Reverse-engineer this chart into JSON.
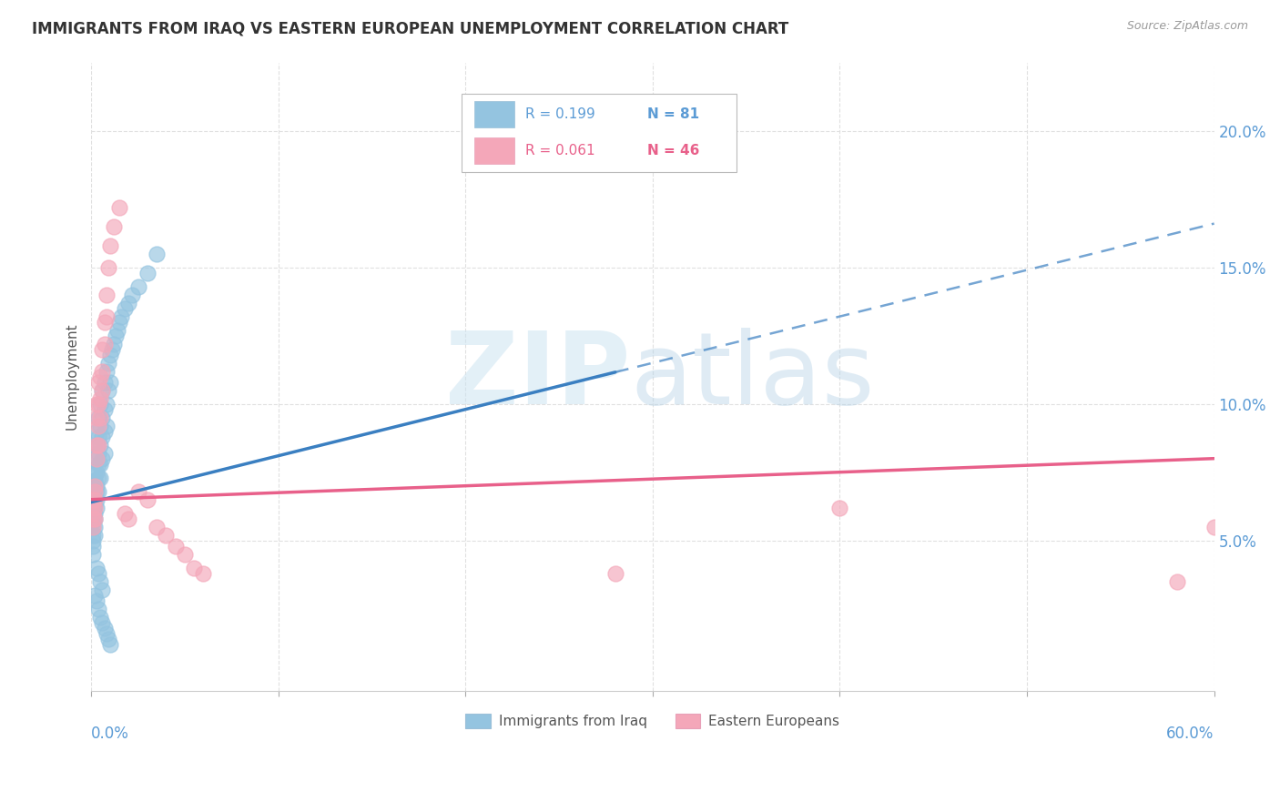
{
  "title": "IMMIGRANTS FROM IRAQ VS EASTERN EUROPEAN UNEMPLOYMENT CORRELATION CHART",
  "source": "Source: ZipAtlas.com",
  "ylabel": "Unemployment",
  "y_ticks": [
    0.05,
    0.1,
    0.15,
    0.2
  ],
  "y_tick_labels": [
    "5.0%",
    "10.0%",
    "15.0%",
    "20.0%"
  ],
  "x_range": [
    0.0,
    0.6
  ],
  "y_range": [
    -0.005,
    0.225
  ],
  "blue_color": "#94c4e0",
  "pink_color": "#f4a7b9",
  "trendline_blue": "#3a7fc1",
  "trendline_pink": "#e8608a",
  "background_color": "#ffffff",
  "iraq_x": [
    0.001,
    0.001,
    0.001,
    0.001,
    0.001,
    0.001,
    0.001,
    0.001,
    0.001,
    0.001,
    0.002,
    0.002,
    0.002,
    0.002,
    0.002,
    0.002,
    0.002,
    0.002,
    0.002,
    0.002,
    0.003,
    0.003,
    0.003,
    0.003,
    0.003,
    0.003,
    0.003,
    0.003,
    0.004,
    0.004,
    0.004,
    0.004,
    0.004,
    0.004,
    0.005,
    0.005,
    0.005,
    0.005,
    0.005,
    0.006,
    0.006,
    0.006,
    0.006,
    0.007,
    0.007,
    0.007,
    0.007,
    0.008,
    0.008,
    0.008,
    0.009,
    0.009,
    0.01,
    0.01,
    0.011,
    0.012,
    0.013,
    0.014,
    0.015,
    0.016,
    0.018,
    0.02,
    0.022,
    0.025,
    0.03,
    0.035,
    0.002,
    0.003,
    0.004,
    0.005,
    0.006,
    0.007,
    0.008,
    0.009,
    0.01,
    0.003,
    0.004,
    0.005,
    0.006
  ],
  "iraq_y": [
    0.065,
    0.063,
    0.06,
    0.058,
    0.057,
    0.055,
    0.052,
    0.05,
    0.048,
    0.045,
    0.075,
    0.072,
    0.07,
    0.068,
    0.065,
    0.063,
    0.06,
    0.058,
    0.055,
    0.052,
    0.09,
    0.085,
    0.08,
    0.075,
    0.07,
    0.068,
    0.065,
    0.062,
    0.095,
    0.088,
    0.082,
    0.078,
    0.073,
    0.068,
    0.1,
    0.092,
    0.085,
    0.078,
    0.073,
    0.105,
    0.095,
    0.088,
    0.08,
    0.108,
    0.098,
    0.09,
    0.082,
    0.112,
    0.1,
    0.092,
    0.115,
    0.105,
    0.118,
    0.108,
    0.12,
    0.122,
    0.125,
    0.127,
    0.13,
    0.132,
    0.135,
    0.137,
    0.14,
    0.143,
    0.148,
    0.155,
    0.03,
    0.028,
    0.025,
    0.022,
    0.02,
    0.018,
    0.016,
    0.014,
    0.012,
    0.04,
    0.038,
    0.035,
    0.032
  ],
  "eu_x": [
    0.001,
    0.001,
    0.001,
    0.001,
    0.001,
    0.002,
    0.002,
    0.002,
    0.002,
    0.002,
    0.003,
    0.003,
    0.003,
    0.003,
    0.004,
    0.004,
    0.004,
    0.004,
    0.005,
    0.005,
    0.005,
    0.006,
    0.006,
    0.006,
    0.007,
    0.007,
    0.008,
    0.008,
    0.009,
    0.01,
    0.012,
    0.015,
    0.018,
    0.02,
    0.025,
    0.03,
    0.035,
    0.04,
    0.045,
    0.05,
    0.055,
    0.06,
    0.28,
    0.4,
    0.58,
    0.6
  ],
  "eu_y": [
    0.065,
    0.063,
    0.06,
    0.058,
    0.055,
    0.07,
    0.068,
    0.065,
    0.062,
    0.058,
    0.1,
    0.095,
    0.085,
    0.08,
    0.108,
    0.1,
    0.092,
    0.085,
    0.11,
    0.102,
    0.095,
    0.12,
    0.112,
    0.105,
    0.13,
    0.122,
    0.14,
    0.132,
    0.15,
    0.158,
    0.165,
    0.172,
    0.06,
    0.058,
    0.068,
    0.065,
    0.055,
    0.052,
    0.048,
    0.045,
    0.04,
    0.038,
    0.038,
    0.062,
    0.035,
    0.055
  ]
}
